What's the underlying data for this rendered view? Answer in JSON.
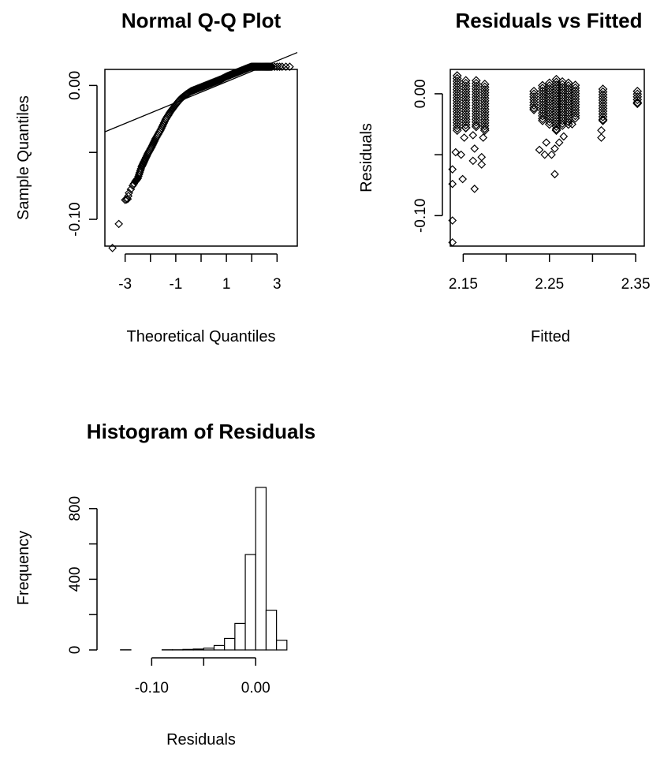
{
  "colors": {
    "background": "#ffffff",
    "ink": "#000000"
  },
  "chart_data": [
    {
      "type": "scatter",
      "title": "Normal Q-Q Plot",
      "xlabel": "Theoretical Quantiles",
      "ylabel": "Sample Quantiles",
      "xlim": [
        -3.8,
        3.8
      ],
      "ylim": [
        -0.12,
        0.012
      ],
      "xticks": [
        -3,
        -2,
        -1,
        0,
        1,
        2,
        3
      ],
      "xtick_labels": [
        "-3",
        "-1",
        "1",
        "3"
      ],
      "xtick_label_values": [
        -3,
        -1,
        1,
        3
      ],
      "yticks": [
        -0.1,
        -0.05,
        0.0
      ],
      "ytick_labels": [
        "-0.10",
        "0.00"
      ],
      "ytick_label_values": [
        -0.1,
        0.0
      ],
      "points": [
        [
          -3.5,
          -0.1214
        ],
        [
          -3.0,
          -0.0855
        ],
        [
          -2.9,
          -0.0848
        ],
        [
          -2.85,
          -0.0803
        ],
        [
          -2.7,
          -0.0748
        ],
        [
          -2.6,
          -0.0718
        ],
        [
          -2.5,
          -0.0693
        ],
        [
          -2.35,
          -0.0608
        ],
        [
          -2.25,
          -0.0568
        ],
        [
          -2.1,
          -0.0508
        ],
        [
          -1.95,
          -0.0458
        ],
        [
          -1.8,
          -0.0398
        ],
        [
          -1.6,
          -0.0333
        ],
        [
          -1.4,
          -0.0253
        ],
        [
          -1.2,
          -0.0193
        ],
        [
          -1.0,
          -0.0143
        ],
        [
          -0.8,
          -0.0098
        ],
        [
          -0.6,
          -0.0068
        ],
        [
          -0.4,
          -0.0043
        ],
        [
          -0.2,
          -0.0028
        ],
        [
          0.0,
          -0.0013
        ],
        [
          0.2,
          0.0002
        ],
        [
          0.4,
          0.0017
        ],
        [
          0.6,
          0.0032
        ],
        [
          0.8,
          0.0047
        ],
        [
          1.0,
          0.0067
        ],
        [
          1.2,
          0.0082
        ],
        [
          1.4,
          0.0097
        ],
        [
          1.6,
          0.0112
        ],
        [
          1.8,
          0.0127
        ],
        [
          2.0,
          0.0142
        ],
        [
          2.2,
          0.0157
        ],
        [
          2.4,
          0.0172
        ],
        [
          2.6,
          0.0187
        ],
        [
          2.8,
          0.0202
        ],
        [
          3.0,
          0.0217
        ],
        [
          3.2,
          0.0232
        ],
        [
          3.5,
          0.0252
        ]
      ],
      "qqline": {
        "intercept": -0.005,
        "slope": 0.0078
      }
    },
    {
      "type": "scatter",
      "title": "Residuals vs Fitted",
      "xlabel": "Fitted",
      "ylabel": "Residuals",
      "xlim": [
        2.135,
        2.36
      ],
      "ylim": [
        -0.125,
        0.02
      ],
      "xticks": [
        2.15,
        2.2,
        2.25,
        2.3,
        2.35
      ],
      "xtick_labels": [
        "2.15",
        "2.25",
        "2.35"
      ],
      "xtick_label_values": [
        2.15,
        2.25,
        2.35
      ],
      "yticks": [
        -0.1,
        -0.05,
        0.0
      ],
      "ytick_labels": [
        "-0.10",
        "0.00"
      ],
      "ytick_label_values": [
        -0.1,
        0.0
      ],
      "columns": [
        {
          "x": 2.143,
          "top": 0.0148,
          "bottom": -0.03,
          "outliers": [
            -0.048,
            -0.062,
            -0.074,
            -0.104,
            -0.122
          ]
        },
        {
          "x": 2.153,
          "top": 0.0108,
          "bottom": -0.028,
          "outliers": [
            -0.036,
            -0.05,
            -0.07
          ]
        },
        {
          "x": 2.165,
          "top": 0.0108,
          "bottom": -0.027,
          "outliers": [
            -0.034,
            -0.045,
            -0.055,
            -0.078
          ]
        },
        {
          "x": 2.175,
          "top": 0.0078,
          "bottom": -0.03,
          "outliers": [
            -0.036,
            -0.052,
            -0.058
          ]
        },
        {
          "x": 2.232,
          "top": 0.002,
          "bottom": -0.013,
          "outliers": []
        },
        {
          "x": 2.242,
          "top": 0.0068,
          "bottom": -0.022,
          "outliers": [
            -0.046
          ]
        },
        {
          "x": 2.25,
          "top": 0.0088,
          "bottom": -0.025,
          "outliers": [
            -0.04,
            -0.05
          ]
        },
        {
          "x": 2.258,
          "top": 0.0118,
          "bottom": -0.03,
          "outliers": [
            -0.045,
            -0.05,
            -0.066
          ]
        },
        {
          "x": 2.265,
          "top": 0.0098,
          "bottom": -0.026,
          "outliers": [
            -0.04
          ]
        },
        {
          "x": 2.272,
          "top": 0.0088,
          "bottom": -0.025,
          "outliers": [
            -0.035
          ]
        },
        {
          "x": 2.28,
          "top": 0.007,
          "bottom": -0.02,
          "outliers": [
            -0.025
          ]
        },
        {
          "x": 2.312,
          "top": 0.0038,
          "bottom": -0.022,
          "outliers": [
            -0.03,
            -0.036
          ]
        },
        {
          "x": 2.352,
          "top": 0.002,
          "bottom": -0.008,
          "outliers": []
        }
      ]
    },
    {
      "type": "bar",
      "title": "Histogram of Residuals",
      "xlabel": "Residuals",
      "ylabel": "Frequency",
      "xlim": [
        -0.145,
        0.04
      ],
      "ylim": [
        0,
        1000
      ],
      "xticks": [
        -0.1,
        -0.05,
        0.0
      ],
      "xtick_labels": [
        "-0.10",
        "0.00"
      ],
      "xtick_label_values": [
        -0.1,
        0.0
      ],
      "yticks": [
        0,
        200,
        400,
        600,
        800
      ],
      "ytick_labels": [
        "0",
        "400",
        "800"
      ],
      "ytick_label_values": [
        0,
        400,
        800
      ],
      "bin_width": 0.01,
      "bins": [
        [
          -0.13,
          1
        ],
        [
          -0.12,
          0
        ],
        [
          -0.11,
          0
        ],
        [
          -0.1,
          0
        ],
        [
          -0.09,
          1
        ],
        [
          -0.08,
          1
        ],
        [
          -0.07,
          3
        ],
        [
          -0.06,
          5
        ],
        [
          -0.05,
          10
        ],
        [
          -0.04,
          25
        ],
        [
          -0.03,
          65
        ],
        [
          -0.02,
          150
        ],
        [
          -0.01,
          540
        ],
        [
          0.0,
          920
        ],
        [
          0.01,
          225
        ],
        [
          0.02,
          55
        ]
      ]
    }
  ]
}
